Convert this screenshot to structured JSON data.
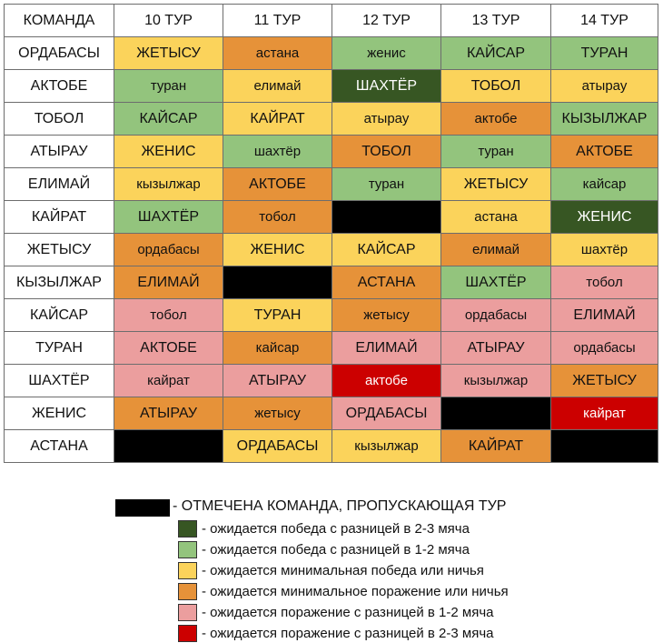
{
  "header": [
    "КОМАНДА",
    "10 ТУР",
    "11 ТУР",
    "12 ТУР",
    "13 ТУР",
    "14 ТУР"
  ],
  "rows": [
    {
      "team": "ОРДАБАСЫ",
      "cells": [
        {
          "t": "ЖЕТЫСУ",
          "c": "y"
        },
        {
          "t": "астана",
          "c": "o"
        },
        {
          "t": "женис",
          "c": "lg"
        },
        {
          "t": "КАЙСАР",
          "c": "lg"
        },
        {
          "t": "ТУРАН",
          "c": "lg"
        }
      ]
    },
    {
      "team": "АКТОБЕ",
      "cells": [
        {
          "t": "туран",
          "c": "lg"
        },
        {
          "t": "елимай",
          "c": "y"
        },
        {
          "t": "ШАХТЁР",
          "c": "dg"
        },
        {
          "t": "ТОБОЛ",
          "c": "y"
        },
        {
          "t": "атырау",
          "c": "y"
        }
      ]
    },
    {
      "team": "ТОБОЛ",
      "cells": [
        {
          "t": "КАЙСАР",
          "c": "lg"
        },
        {
          "t": "КАЙРАТ",
          "c": "y"
        },
        {
          "t": "атырау",
          "c": "y"
        },
        {
          "t": "актобе",
          "c": "o"
        },
        {
          "t": "КЫЗЫЛЖАР",
          "c": "lg"
        }
      ]
    },
    {
      "team": "АТЫРАУ",
      "cells": [
        {
          "t": "ЖЕНИС",
          "c": "y"
        },
        {
          "t": "шахтёр",
          "c": "lg"
        },
        {
          "t": "ТОБОЛ",
          "c": "o"
        },
        {
          "t": "туран",
          "c": "lg"
        },
        {
          "t": "АКТОБЕ",
          "c": "o"
        }
      ]
    },
    {
      "team": "ЕЛИМАЙ",
      "cells": [
        {
          "t": "кызылжар",
          "c": "y"
        },
        {
          "t": "АКТОБЕ",
          "c": "o"
        },
        {
          "t": "туран",
          "c": "lg"
        },
        {
          "t": "ЖЕТЫСУ",
          "c": "y"
        },
        {
          "t": "кайсар",
          "c": "lg"
        }
      ]
    },
    {
      "team": "КАЙРАТ",
      "cells": [
        {
          "t": "ШАХТЁР",
          "c": "lg"
        },
        {
          "t": "тобол",
          "c": "o"
        },
        {
          "t": "",
          "c": "k"
        },
        {
          "t": "астана",
          "c": "y"
        },
        {
          "t": "ЖЕНИС",
          "c": "dg"
        }
      ]
    },
    {
      "team": "ЖЕТЫСУ",
      "cells": [
        {
          "t": "ордабасы",
          "c": "o"
        },
        {
          "t": "ЖЕНИС",
          "c": "y"
        },
        {
          "t": "КАЙСАР",
          "c": "y"
        },
        {
          "t": "елимай",
          "c": "o"
        },
        {
          "t": "шахтёр",
          "c": "y"
        }
      ]
    },
    {
      "team": "КЫЗЫЛЖАР",
      "cells": [
        {
          "t": "ЕЛИМАЙ",
          "c": "o"
        },
        {
          "t": "",
          "c": "k"
        },
        {
          "t": "АСТАНА",
          "c": "o"
        },
        {
          "t": "ШАХТЁР",
          "c": "lg"
        },
        {
          "t": "тобол",
          "c": "p"
        }
      ]
    },
    {
      "team": "КАЙСАР",
      "cells": [
        {
          "t": "тобол",
          "c": "p"
        },
        {
          "t": "ТУРАН",
          "c": "y"
        },
        {
          "t": "жетысу",
          "c": "o"
        },
        {
          "t": "ордабасы",
          "c": "p"
        },
        {
          "t": "ЕЛИМАЙ",
          "c": "p"
        }
      ]
    },
    {
      "team": "ТУРАН",
      "cells": [
        {
          "t": "АКТОБЕ",
          "c": "p"
        },
        {
          "t": "кайсар",
          "c": "o"
        },
        {
          "t": "ЕЛИМАЙ",
          "c": "p"
        },
        {
          "t": "АТЫРАУ",
          "c": "p"
        },
        {
          "t": "ордабасы",
          "c": "p"
        }
      ]
    },
    {
      "team": "ШАХТЁР",
      "cells": [
        {
          "t": "кайрат",
          "c": "p"
        },
        {
          "t": "АТЫРАУ",
          "c": "p"
        },
        {
          "t": "актобе",
          "c": "r"
        },
        {
          "t": "кызылжар",
          "c": "p"
        },
        {
          "t": "ЖЕТЫСУ",
          "c": "o"
        }
      ]
    },
    {
      "team": "ЖЕНИС",
      "cells": [
        {
          "t": "АТЫРАУ",
          "c": "o"
        },
        {
          "t": "жетысу",
          "c": "o"
        },
        {
          "t": "ОРДАБАСЫ",
          "c": "p"
        },
        {
          "t": "",
          "c": "k"
        },
        {
          "t": "кайрат",
          "c": "r"
        }
      ]
    },
    {
      "team": "АСТАНА",
      "cells": [
        {
          "t": "",
          "c": "k"
        },
        {
          "t": "ОРДАБАСЫ",
          "c": "y"
        },
        {
          "t": "кызылжар",
          "c": "y"
        },
        {
          "t": "КАЙРАТ",
          "c": "o"
        },
        {
          "t": "",
          "c": "k"
        }
      ]
    }
  ],
  "legend": {
    "black_label": "- ОТМЕЧЕНА КОМАНДА, ПРОПУСКАЮЩАЯ ТУР",
    "items": [
      {
        "color": "#375623",
        "label": "- ожидается победа с разницей в 2-3 мяча"
      },
      {
        "color": "#93c47d",
        "label": "- ожидается победа с разницей в 1-2 мяча"
      },
      {
        "color": "#fbd35b",
        "label": "- ожидается минимальная победа или ничья"
      },
      {
        "color": "#e69239",
        "label": "- ожидается минимальное поражение или ничья"
      },
      {
        "color": "#eb9e9e",
        "label": "- ожидается поражение с разницей в 1-2 мяча"
      },
      {
        "color": "#cc0000",
        "label": "- ожидается поражение с разницей в 2-3 мяча"
      }
    ]
  }
}
